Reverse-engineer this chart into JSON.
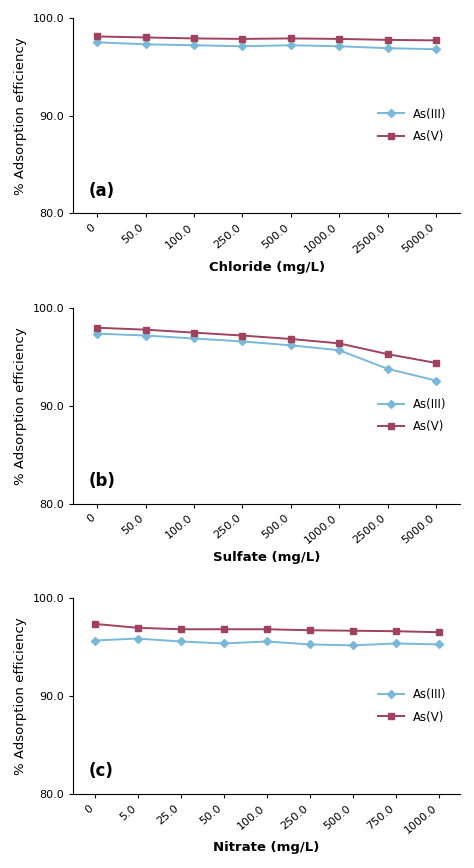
{
  "panel_a": {
    "xlabel": "Chloride (mg/L)",
    "label": "(a)",
    "x_tick_labels": [
      "0",
      "50.0",
      "100.0",
      "250.0",
      "500.0",
      "1000.0",
      "2500.0",
      "5000.0"
    ],
    "as3_y": [
      97.5,
      97.3,
      97.2,
      97.1,
      97.2,
      97.1,
      96.9,
      96.8
    ],
    "as5_y": [
      98.1,
      98.0,
      97.9,
      97.85,
      97.9,
      97.85,
      97.75,
      97.7
    ]
  },
  "panel_b": {
    "xlabel": "Sulfate (mg/L)",
    "label": "(b)",
    "x_tick_labels": [
      "0",
      "50.0",
      "100.0",
      "250.0",
      "500.0",
      "1000.0",
      "2500.0",
      "5000.0"
    ],
    "as3_y": [
      97.4,
      97.2,
      96.9,
      96.6,
      96.2,
      95.7,
      93.8,
      92.6
    ],
    "as5_y": [
      98.0,
      97.8,
      97.5,
      97.2,
      96.85,
      96.4,
      95.3,
      94.4
    ]
  },
  "panel_c": {
    "xlabel": "Nitrate (mg/L)",
    "label": "(c)",
    "x_tick_labels": [
      "0",
      "5.0",
      "25.0",
      "50.0",
      "100.0",
      "250.0",
      "500.0",
      "750.0",
      "1000.0"
    ],
    "as3_y": [
      95.7,
      95.9,
      95.6,
      95.4,
      95.6,
      95.3,
      95.2,
      95.4,
      95.3
    ],
    "as5_y": [
      97.4,
      97.0,
      96.85,
      96.85,
      96.85,
      96.75,
      96.7,
      96.65,
      96.55
    ]
  },
  "ylim": [
    80.0,
    100.0
  ],
  "yticks": [
    80.0,
    90.0,
    100.0
  ],
  "ylabel": "% Adsorption efficiency",
  "as3_color": "#7ab8d9",
  "as5_color": "#a0415d",
  "as3_label": "As(III)",
  "as5_label": "As(V)",
  "legend_fontsize": 8.5,
  "axis_label_fontsize": 9.5,
  "tick_fontsize": 8,
  "panel_label_fontsize": 12
}
